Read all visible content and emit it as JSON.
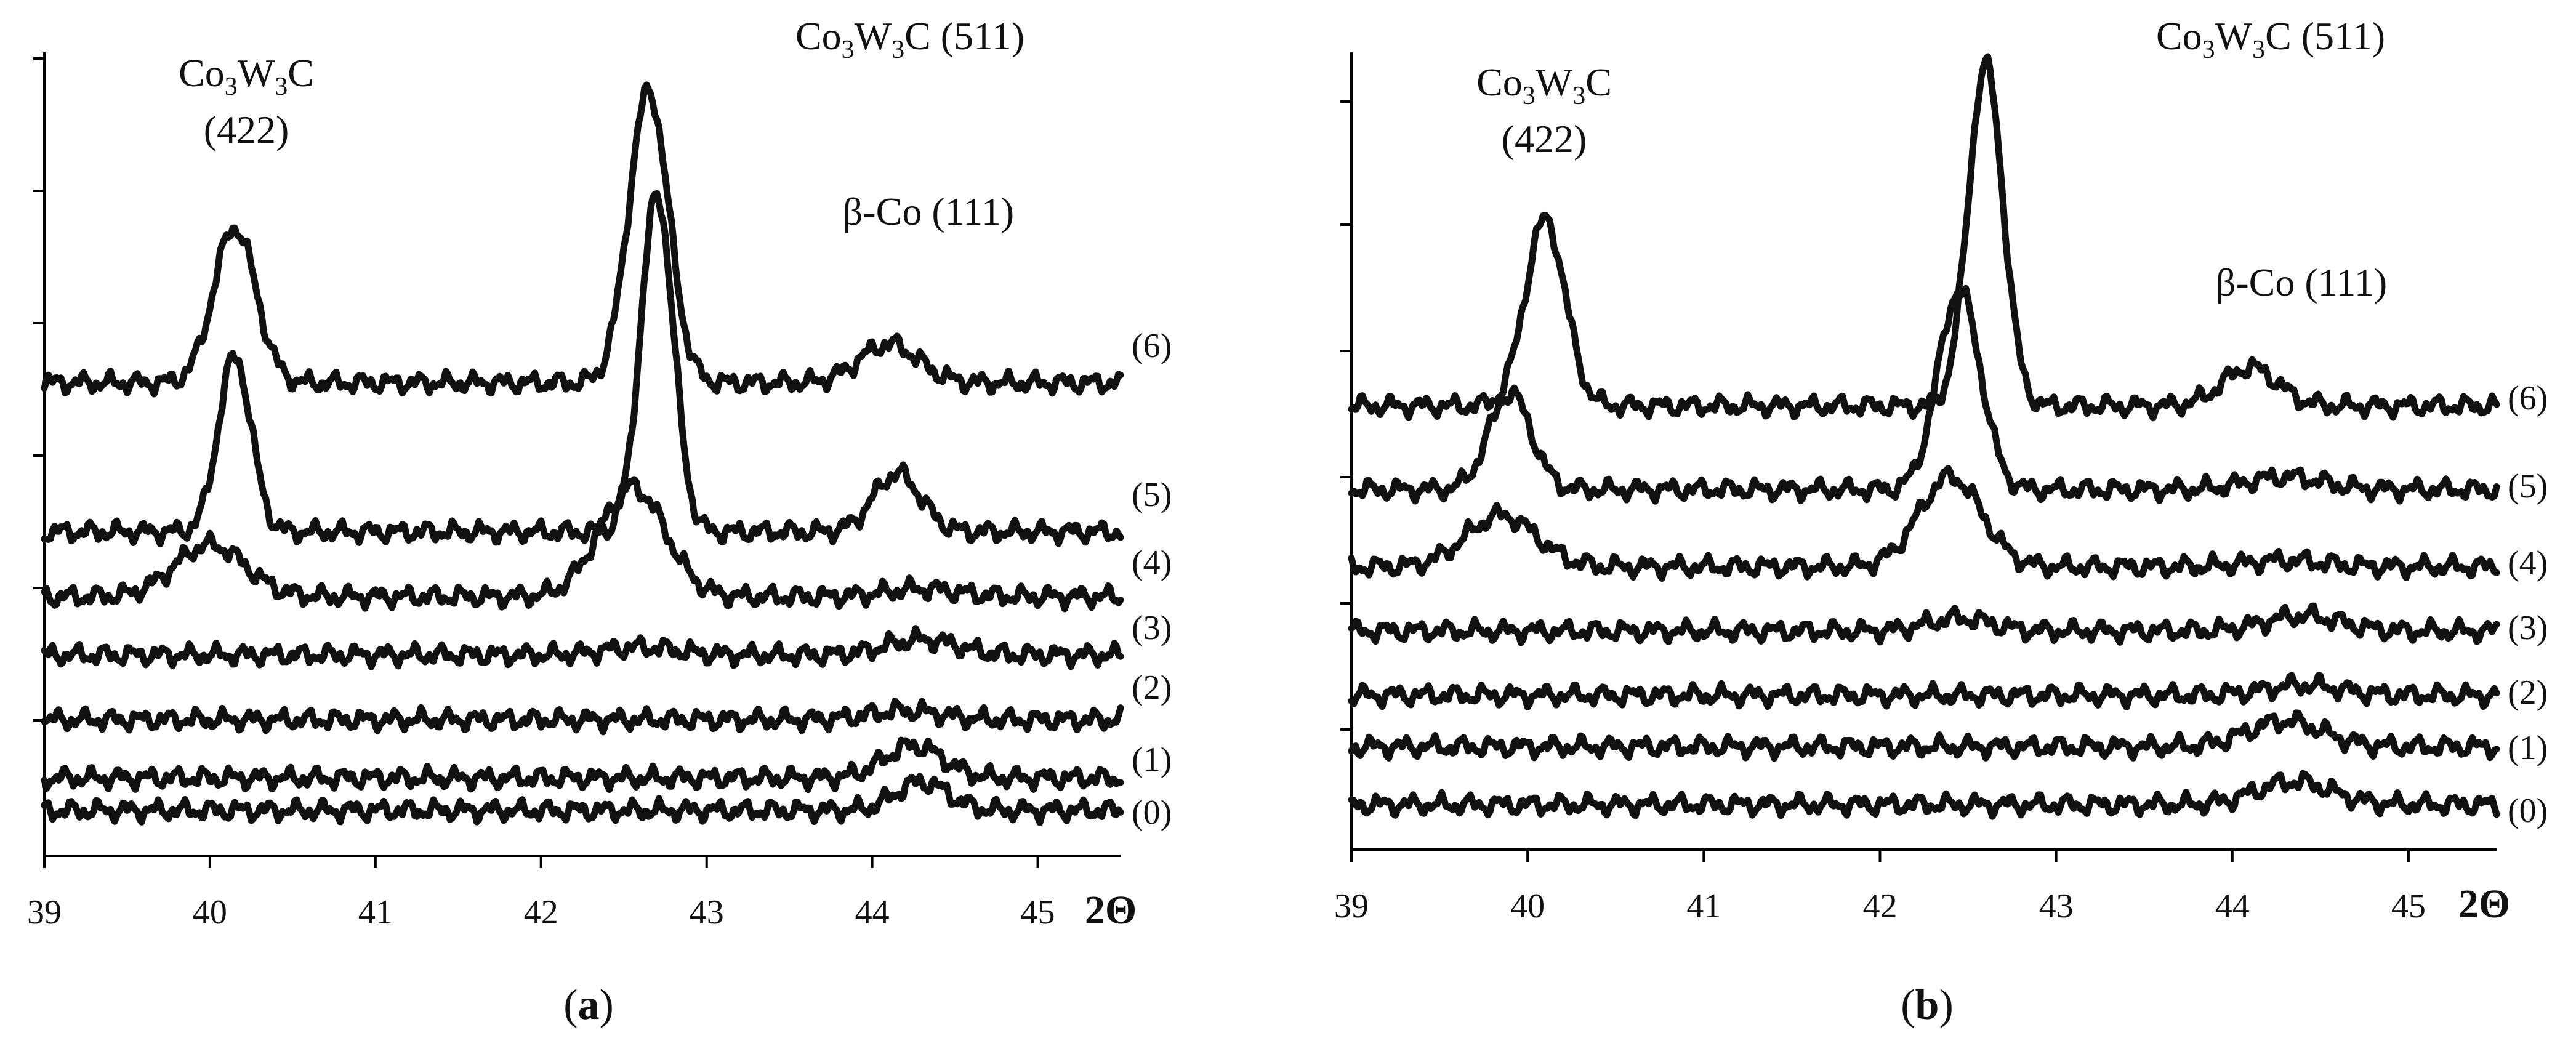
{
  "chart_data": [
    {
      "type": "line",
      "panel_label_open": "(",
      "panel_label_letter": "a",
      "panel_label_close": ")",
      "xlabel": "2Θ",
      "xlim": [
        39,
        45.5
      ],
      "xticks": [
        "39",
        "40",
        "41",
        "42",
        "43",
        "44",
        "45"
      ],
      "y_ticks_unlabeled": true,
      "peak_labels": [
        {
          "lines": [
            [
              "Co",
              "3",
              "W",
              "3",
              "C"
            ],
            [
              "(422)"
            ]
          ]
        },
        {
          "lines": [
            [
              "Co",
              "3",
              "W",
              "3",
              "C (511)"
            ]
          ]
        },
        {
          "lines": [
            [
              "β-Co (111)"
            ]
          ]
        }
      ],
      "series": [
        {
          "name": "(0)",
          "baseline": 0.35,
          "peaks": [
            [
              44.3,
              0.22,
              0.22
            ]
          ]
        },
        {
          "name": "(1)",
          "baseline": 0.6,
          "peaks": [
            [
              44.25,
              0.25,
              0.25
            ]
          ]
        },
        {
          "name": "(2)",
          "baseline": 1.05,
          "peaks": [
            [
              44.2,
              0.07,
              0.3
            ]
          ]
        },
        {
          "name": "(3)",
          "baseline": 1.55,
          "peaks": [
            [
              42.6,
              0.06,
              0.3
            ],
            [
              44.3,
              0.12,
              0.3
            ]
          ]
        },
        {
          "name": "(4)",
          "baseline": 2.0,
          "peaks": [
            [
              40.0,
              0.4,
              0.3
            ],
            [
              42.55,
              0.85,
              0.28
            ],
            [
              44.3,
              0.06,
              0.3
            ]
          ]
        },
        {
          "name": "(5)",
          "baseline": 2.5,
          "peaks": [
            [
              40.15,
              1.35,
              0.14
            ],
            [
              42.7,
              2.6,
              0.14
            ],
            [
              44.15,
              0.45,
              0.2
            ]
          ]
        },
        {
          "name": "(6)",
          "baseline": 3.65,
          "peaks": [
            [
              40.15,
              1.2,
              0.18
            ],
            [
              42.65,
              2.25,
              0.17
            ],
            [
              44.1,
              0.3,
              0.25
            ]
          ]
        }
      ]
    },
    {
      "type": "line",
      "panel_label_open": "(",
      "panel_label_letter": "b",
      "panel_label_close": ")",
      "xlabel": "2Θ",
      "xlim": [
        39,
        45.5
      ],
      "xticks": [
        "39",
        "40",
        "41",
        "42",
        "43",
        "44",
        "45"
      ],
      "y_ticks_unlabeled": true,
      "peak_labels": [
        {
          "lines": [
            [
              "Co",
              "3",
              "W",
              "3",
              "C"
            ],
            [
              "(422)"
            ]
          ]
        },
        {
          "lines": [
            [
              "Co",
              "3",
              "W",
              "3",
              "C (511)"
            ]
          ]
        },
        {
          "lines": [
            [
              "β-Co (111)"
            ]
          ]
        }
      ],
      "series": [
        {
          "name": "(0)",
          "baseline": 0.35,
          "peaks": [
            [
              44.35,
              0.18,
              0.3
            ]
          ]
        },
        {
          "name": "(1)",
          "baseline": 0.8,
          "peaks": [
            [
              44.3,
              0.2,
              0.3
            ]
          ]
        },
        {
          "name": "(2)",
          "baseline": 1.2,
          "peaks": [
            [
              44.4,
              0.08,
              0.3
            ]
          ]
        },
        {
          "name": "(3)",
          "baseline": 1.7,
          "peaks": [
            [
              42.45,
              0.1,
              0.25
            ],
            [
              44.4,
              0.12,
              0.3
            ]
          ]
        },
        {
          "name": "(4)",
          "baseline": 2.2,
          "peaks": [
            [
              39.85,
              0.4,
              0.28
            ],
            [
              42.4,
              0.7,
              0.25
            ],
            [
              44.3,
              0.05,
              0.3
            ]
          ]
        },
        {
          "name": "(5)",
          "baseline": 2.8,
          "peaks": [
            [
              39.9,
              0.75,
              0.17
            ],
            [
              42.45,
              1.55,
              0.17
            ],
            [
              44.3,
              0.1,
              0.3
            ]
          ]
        },
        {
          "name": "(6)",
          "baseline": 3.45,
          "peaks": [
            [
              40.1,
              1.45,
              0.16
            ],
            [
              42.6,
              2.65,
              0.14
            ],
            [
              44.1,
              0.3,
              0.22
            ]
          ]
        }
      ]
    }
  ]
}
